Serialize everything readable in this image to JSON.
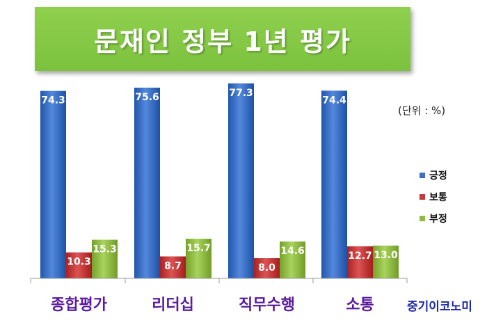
{
  "banner": {
    "title": "문재인 정부 1년 평가"
  },
  "unit_note": "(단위 : %)",
  "brand": "중기이코노미",
  "colors": {
    "banner": "#7fc444",
    "positive": "#3a6fc4",
    "neutral": "#c23a3a",
    "negative": "#8fba44",
    "category_text": "#5b1a9e",
    "brand_text": "#1e2aa6"
  },
  "chart_data": {
    "type": "bar",
    "title": "문재인 정부 1년 평가",
    "categories": [
      "종합평가",
      "리더십",
      "직무수행",
      "소통"
    ],
    "series": [
      {
        "name": "긍정",
        "color": "#3a6fc4",
        "values": [
          74.3,
          75.6,
          77.3,
          74.4
        ]
      },
      {
        "name": "보통",
        "color": "#c23a3a",
        "values": [
          10.3,
          8.7,
          8.0,
          12.7
        ]
      },
      {
        "name": "부정",
        "color": "#8fba44",
        "values": [
          15.3,
          15.7,
          14.6,
          13.0
        ]
      }
    ],
    "ylim": [
      0,
      80
    ],
    "unit": "%",
    "grid": false,
    "legend_position": "right"
  }
}
